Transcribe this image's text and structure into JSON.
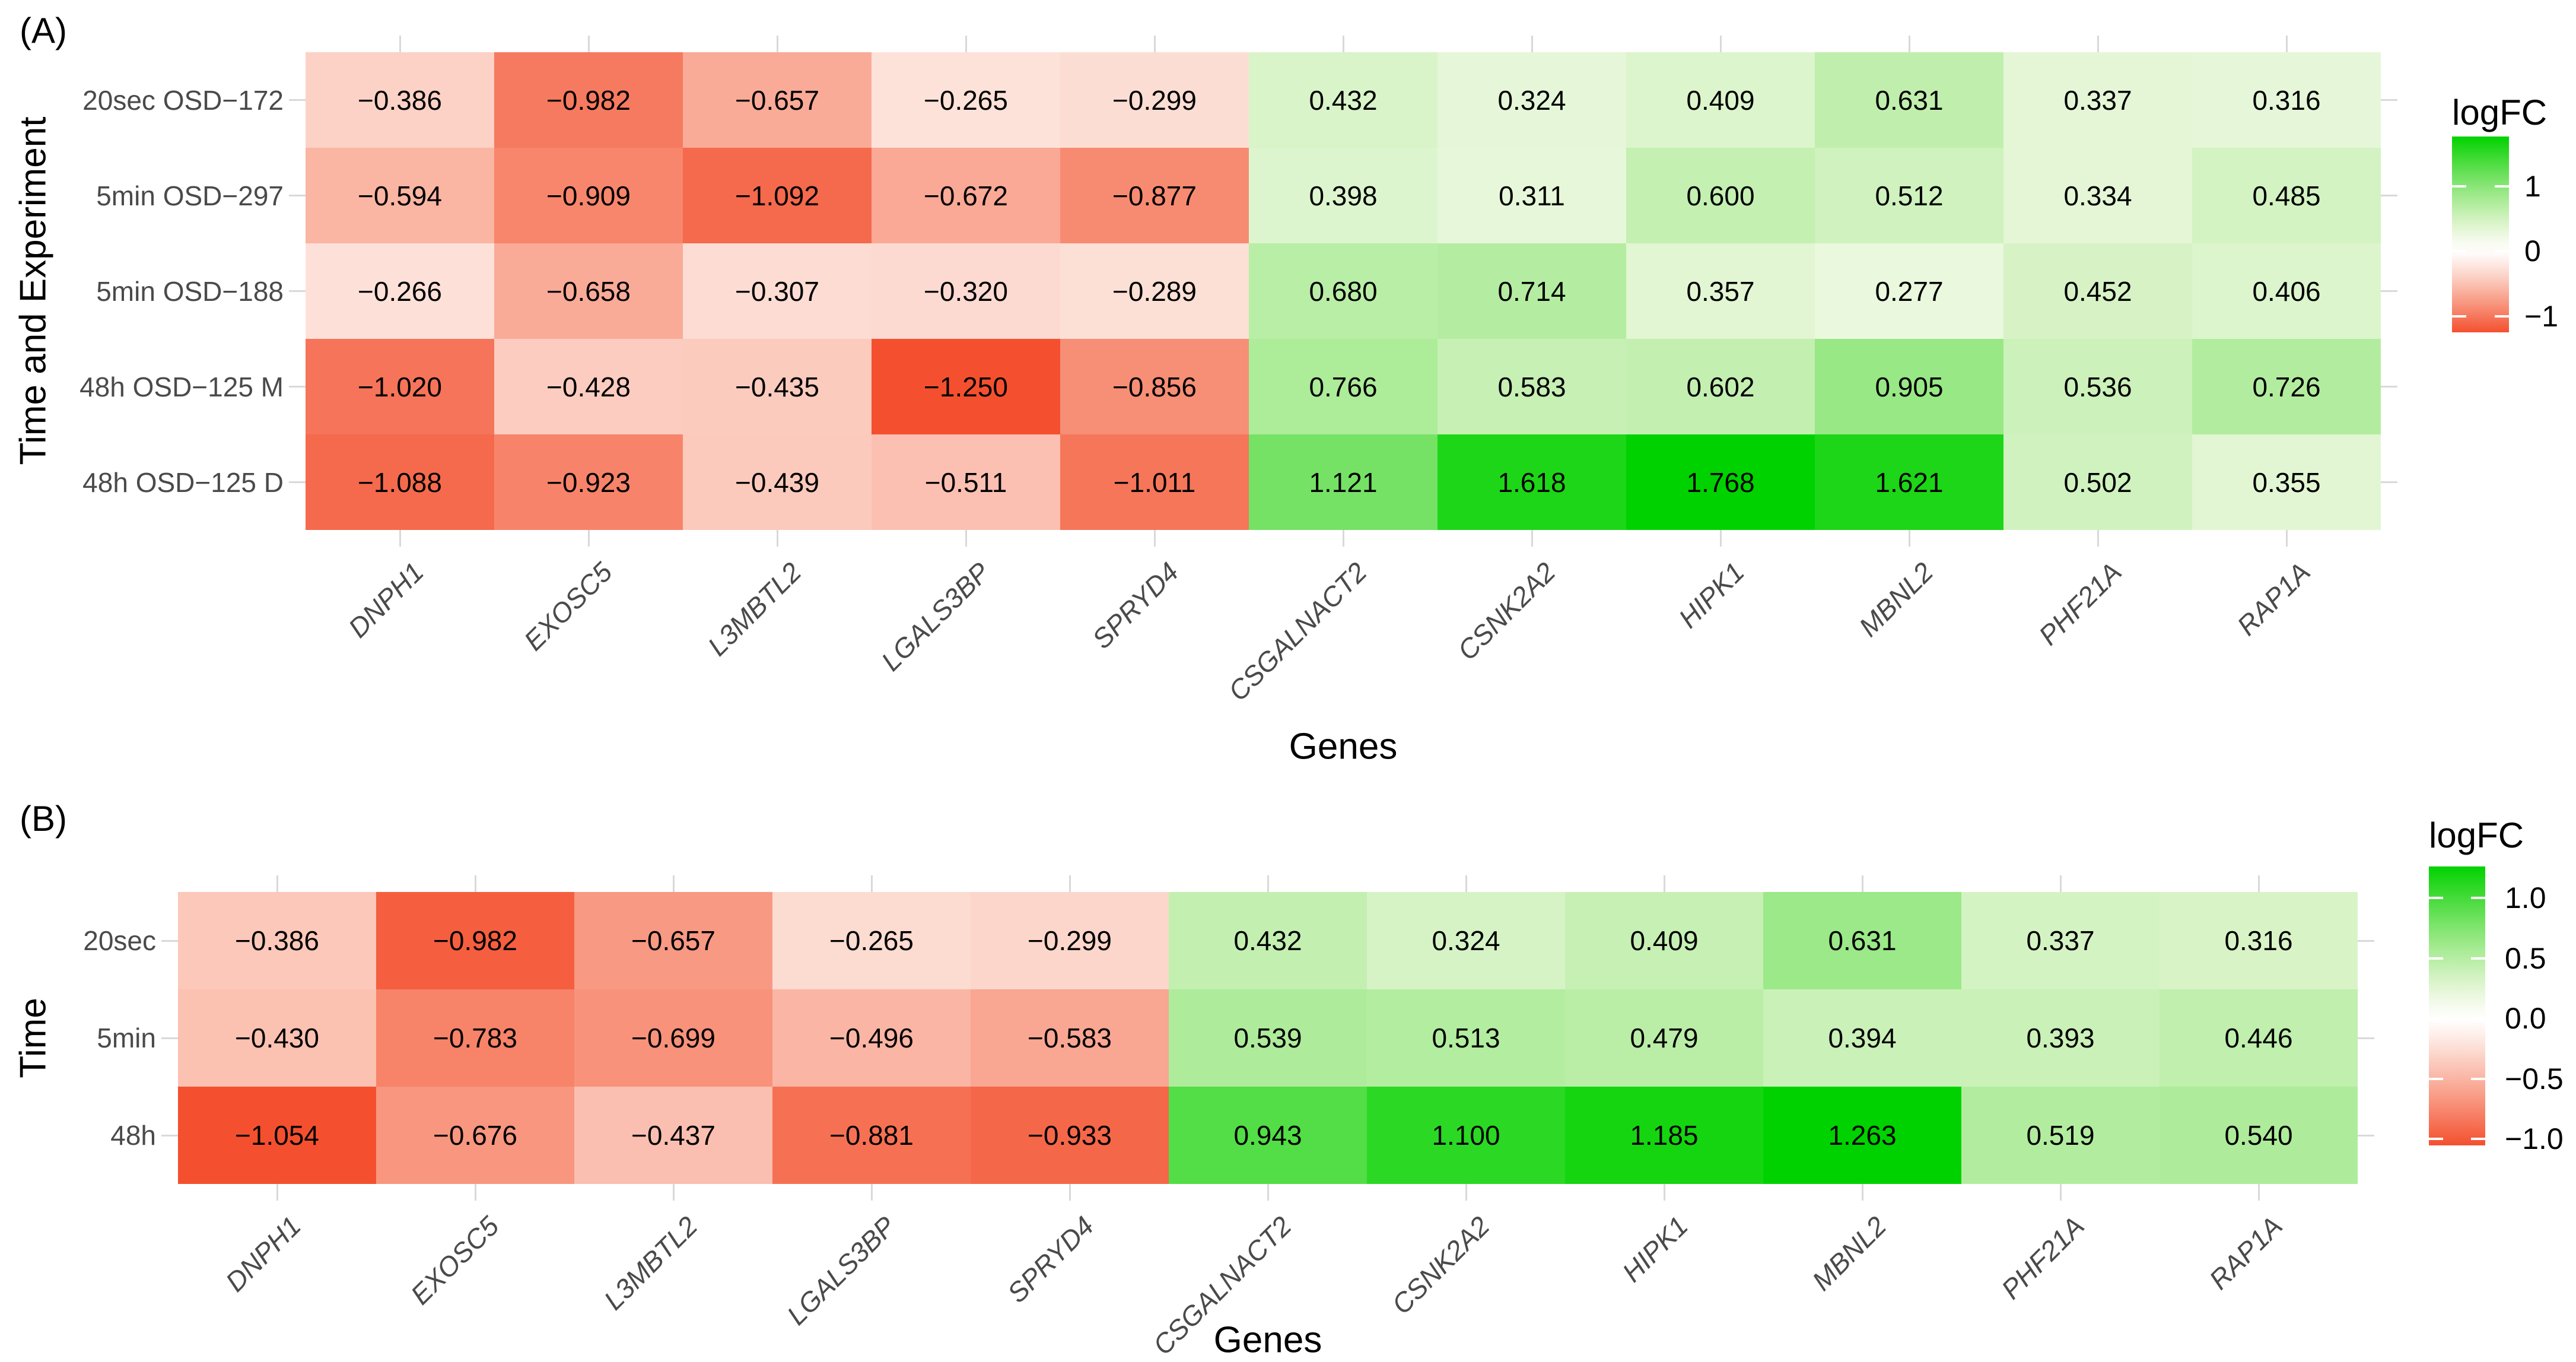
{
  "style": {
    "background": "#FFFFFF",
    "positive_end_color": "#00D200",
    "negative_end_color": "#F4502F",
    "midpoint_color": "#FFFFFF",
    "axis_tick_color": "#D9D9D9",
    "axis_text_color": "#4A4A4A",
    "title_text_color": "#000000"
  },
  "chart_data": [
    {
      "type": "heatmap",
      "panel_label": "(A)",
      "xlabel": "Genes",
      "ylabel": "Time and Experiment",
      "legend": {
        "title": "logFC",
        "ticks": [
          1,
          0,
          -1
        ],
        "tick_labels": [
          "1",
          "0",
          "−1"
        ],
        "position": "right"
      },
      "x_categories": [
        "DNPH1",
        "EXOSC5",
        "L3MBTL2",
        "LGALS3BP",
        "SPRYD4",
        "CSGALNACT2",
        "CSNK2A2",
        "HIPK1",
        "MBNL2",
        "PHF21A",
        "RAP1A"
      ],
      "y_categories": [
        "20sec OSD−172",
        "5min OSD−297",
        "5min OSD−188",
        "48h OSD−125 M",
        "48h OSD−125 D"
      ],
      "values": [
        [
          -0.386,
          -0.982,
          -0.657,
          -0.265,
          -0.299,
          0.432,
          0.324,
          0.409,
          0.631,
          0.337,
          0.316
        ],
        [
          -0.594,
          -0.909,
          -1.092,
          -0.672,
          -0.877,
          0.398,
          0.311,
          0.6,
          0.512,
          0.334,
          0.485
        ],
        [
          -0.266,
          -0.658,
          -0.307,
          -0.32,
          -0.289,
          0.68,
          0.714,
          0.357,
          0.277,
          0.452,
          0.406
        ],
        [
          -1.02,
          -0.428,
          -0.435,
          -1.25,
          -0.856,
          0.766,
          0.583,
          0.602,
          0.905,
          0.536,
          0.726
        ],
        [
          -1.088,
          -0.923,
          -0.439,
          -0.511,
          -1.011,
          1.121,
          1.618,
          1.768,
          1.621,
          0.502,
          0.355
        ]
      ],
      "value_range": [
        -1.25,
        1.768
      ],
      "grid": false
    },
    {
      "type": "heatmap",
      "panel_label": "(B)",
      "xlabel": "Genes",
      "ylabel": "Time",
      "legend": {
        "title": "logFC",
        "ticks": [
          1.0,
          0.5,
          0.0,
          -0.5,
          -1.0
        ],
        "tick_labels": [
          "1.0",
          "0.5",
          "0.0",
          "−0.5",
          "−1.0"
        ],
        "position": "right"
      },
      "x_categories": [
        "DNPH1",
        "EXOSC5",
        "L3MBTL2",
        "LGALS3BP",
        "SPRYD4",
        "CSGALNACT2",
        "CSNK2A2",
        "HIPK1",
        "MBNL2",
        "PHF21A",
        "RAP1A"
      ],
      "y_categories": [
        "20sec",
        "5min",
        "48h"
      ],
      "values": [
        [
          -0.386,
          -0.982,
          -0.657,
          -0.265,
          -0.299,
          0.432,
          0.324,
          0.409,
          0.631,
          0.337,
          0.316
        ],
        [
          -0.43,
          -0.783,
          -0.699,
          -0.496,
          -0.583,
          0.539,
          0.513,
          0.479,
          0.394,
          0.393,
          0.446
        ],
        [
          -1.054,
          -0.676,
          -0.437,
          -0.881,
          -0.933,
          0.943,
          1.1,
          1.185,
          1.263,
          0.519,
          0.54
        ]
      ],
      "value_range": [
        -1.054,
        1.263
      ],
      "grid": false
    }
  ]
}
